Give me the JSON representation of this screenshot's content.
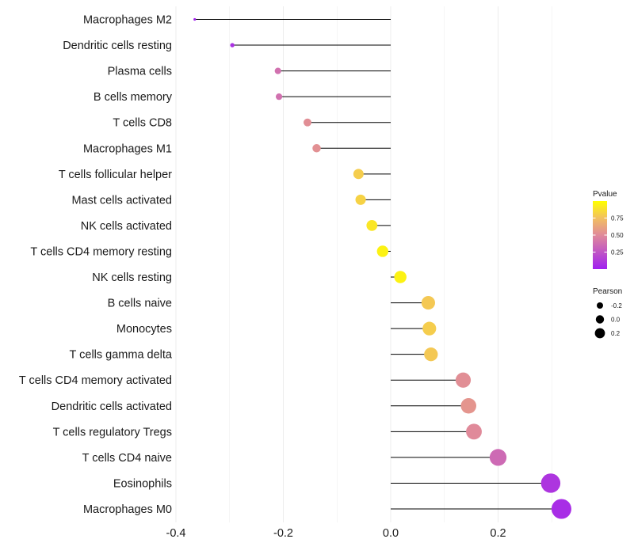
{
  "chart_data": {
    "type": "lollipop",
    "categories": [
      "Macrophages M2",
      "Dendritic cells resting",
      "Plasma cells",
      "B cells memory",
      "T cells CD8",
      "Macrophages M1",
      "T cells follicular helper",
      "Mast cells activated",
      "NK cells activated",
      "T cells CD4 memory resting",
      "NK cells resting",
      "B cells naive",
      "Monocytes",
      "T cells gamma delta",
      "T cells CD4 memory activated",
      "Dendritic cells activated",
      "T cells regulatory  Tregs ",
      "T cells CD4 naive",
      "Eosinophils",
      "Macrophages M0"
    ],
    "values": [
      -0.365,
      -0.295,
      -0.21,
      -0.208,
      -0.155,
      -0.138,
      -0.06,
      -0.056,
      -0.035,
      -0.015,
      0.018,
      0.07,
      0.072,
      0.075,
      0.135,
      0.145,
      0.155,
      0.2,
      0.298,
      0.318
    ],
    "pvalues": [
      0.02,
      0.08,
      0.38,
      0.38,
      0.52,
      0.53,
      0.8,
      0.82,
      0.9,
      0.95,
      0.95,
      0.78,
      0.8,
      0.78,
      0.52,
      0.55,
      0.5,
      0.35,
      0.1,
      0.06
    ],
    "x_ticks": [
      -0.4,
      -0.2,
      0.0,
      0.2
    ],
    "x_tick_labels": [
      "-0.4",
      "-0.2",
      "0.0",
      "0.2"
    ],
    "xlim": [
      -0.4,
      0.33
    ],
    "grid": true,
    "legend_color": {
      "title": "Pvalue",
      "ticks": [
        0.75,
        0.5,
        0.25
      ],
      "tick_labels": [
        "0.75",
        "0.50",
        "0.25"
      ],
      "range": [
        0.0,
        1.0
      ],
      "color_low": "#a020f0",
      "color_high": "#ffff00"
    },
    "legend_size": {
      "title": "Pearson",
      "entries": [
        "-0.2",
        "0.0",
        "0.2"
      ],
      "entry_values": [
        -0.2,
        0.0,
        0.2
      ]
    },
    "legend_position": "right",
    "colors": {
      "stem": "#000000",
      "grid": "#ebebeb",
      "text": "#1a1a1a"
    }
  }
}
